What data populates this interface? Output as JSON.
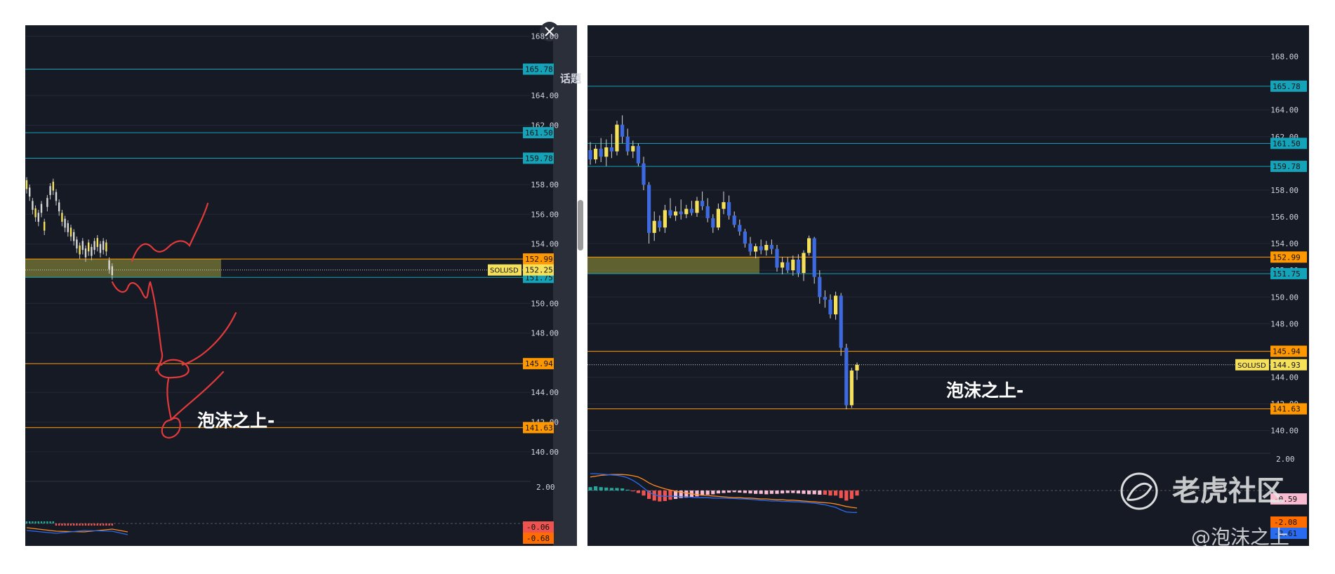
{
  "watermark": {
    "brand": "老虎社区",
    "handle": "@泡沫之上"
  },
  "colors": {
    "bg": "#161a25",
    "text": "#d1d4dc",
    "grid": "#242836",
    "up": "#f5e05c",
    "down": "#3d6ae0",
    "cyan": "#14a3b8",
    "orange": "#ff9800",
    "zone": "#7a7a34",
    "red_pen": "#e23a3a",
    "macd_fast": "#ff8a1f",
    "macd_slow": "#2a6cf0",
    "hist_up": "#26a69a",
    "hist_down": "#ef5350",
    "hist_down_light": "#f8bbd0"
  },
  "chart_data": [
    {
      "type": "candlestick",
      "panel": "left",
      "series_label": "SOLUSD",
      "ylim": [
        139.0,
        168.5
      ],
      "yticks": [
        {
          "v": 168.0,
          "t": "168.00"
        },
        {
          "v": 164.0,
          "t": "164.00"
        },
        {
          "v": 162.0,
          "t": "162.00"
        },
        {
          "v": 158.0,
          "t": "158.00"
        },
        {
          "v": 156.0,
          "t": "156.00"
        },
        {
          "v": 154.0,
          "t": "154.00"
        },
        {
          "v": 150.0,
          "t": "150.00"
        },
        {
          "v": 148.0,
          "t": "148.00"
        },
        {
          "v": 144.0,
          "t": "144.00"
        },
        {
          "v": 142.0,
          "t": "142.00"
        },
        {
          "v": 140.0,
          "t": "140.00"
        }
      ],
      "levels": [
        {
          "value": 165.78,
          "label": "165.78",
          "color": "cyan"
        },
        {
          "value": 161.5,
          "label": "161.50",
          "color": "cyan"
        },
        {
          "value": 159.78,
          "label": "159.78",
          "color": "cyan"
        },
        {
          "value": 152.99,
          "label": "152.99",
          "color": "orange"
        },
        {
          "value": 151.75,
          "label": "151.75",
          "color": "cyan"
        },
        {
          "value": 145.94,
          "label": "145.94",
          "color": "orange"
        },
        {
          "value": 141.63,
          "label": "141.63",
          "color": "orange"
        }
      ],
      "last_price": {
        "value": 152.25,
        "label": "152.25"
      },
      "zone": {
        "low": 151.75,
        "high": 152.99
      },
      "annotation": "泡沫之上-",
      "macd": {
        "tick": "2.00",
        "values": [
          "-0.06",
          "-0.68"
        ]
      }
    },
    {
      "type": "candlestick",
      "panel": "right",
      "series_label": "SOLUSD",
      "ylim": [
        139.3,
        169.5
      ],
      "yticks": [
        {
          "v": 168.0,
          "t": "168.00"
        },
        {
          "v": 164.0,
          "t": "164.00"
        },
        {
          "v": 162.0,
          "t": "162.00"
        },
        {
          "v": 158.0,
          "t": "158.00"
        },
        {
          "v": 156.0,
          "t": "156.00"
        },
        {
          "v": 154.0,
          "t": "154.00"
        },
        {
          "v": 152.0,
          "t": "152.00"
        },
        {
          "v": 150.0,
          "t": "150.00"
        },
        {
          "v": 148.0,
          "t": "148.00"
        },
        {
          "v": 144.0,
          "t": "144.00"
        },
        {
          "v": 142.0,
          "t": "142.00"
        },
        {
          "v": 140.0,
          "t": "140.00"
        }
      ],
      "levels": [
        {
          "value": 165.78,
          "label": "165.78",
          "color": "cyan"
        },
        {
          "value": 161.5,
          "label": "161.50",
          "color": "cyan"
        },
        {
          "value": 159.78,
          "label": "159.78",
          "color": "cyan"
        },
        {
          "value": 152.99,
          "label": "152.99",
          "color": "orange"
        },
        {
          "value": 151.75,
          "label": "151.75",
          "color": "cyan"
        },
        {
          "value": 145.94,
          "label": "145.94",
          "color": "orange"
        },
        {
          "value": 141.63,
          "label": "141.63",
          "color": "orange"
        }
      ],
      "last_price": {
        "value": 144.93,
        "label": "144.93"
      },
      "zone": {
        "low": 151.75,
        "high": 152.99
      },
      "annotation": "泡沫之上-",
      "macd": {
        "tick": "2.00",
        "values": [
          "-0.59",
          "-2.08",
          "-2.61"
        ]
      },
      "candles": [
        [
          161.0,
          161.6,
          159.9,
          160.3
        ],
        [
          160.3,
          161.4,
          160.0,
          161.1
        ],
        [
          161.1,
          161.9,
          160.1,
          160.5
        ],
        [
          160.5,
          161.8,
          159.8,
          161.2
        ],
        [
          161.2,
          162.2,
          160.4,
          160.9
        ],
        [
          160.9,
          163.2,
          160.6,
          162.9
        ],
        [
          162.9,
          163.6,
          161.5,
          162.0
        ],
        [
          162.0,
          162.6,
          160.6,
          160.9
        ],
        [
          160.9,
          161.7,
          160.4,
          161.3
        ],
        [
          161.3,
          161.5,
          159.8,
          160.0
        ],
        [
          160.0,
          160.5,
          158.0,
          158.4
        ],
        [
          158.4,
          158.6,
          154.0,
          154.8
        ],
        [
          154.8,
          156.4,
          154.2,
          155.7
        ],
        [
          155.7,
          156.1,
          154.9,
          155.2
        ],
        [
          155.2,
          156.9,
          154.8,
          156.5
        ],
        [
          156.5,
          157.4,
          155.9,
          156.1
        ],
        [
          156.1,
          156.8,
          155.7,
          156.4
        ],
        [
          156.4,
          157.3,
          155.8,
          156.2
        ],
        [
          156.2,
          156.9,
          155.9,
          156.6
        ],
        [
          156.6,
          157.2,
          156.1,
          156.3
        ],
        [
          156.3,
          157.5,
          156.0,
          157.2
        ],
        [
          157.2,
          157.9,
          156.5,
          156.8
        ],
        [
          156.8,
          157.4,
          155.6,
          155.9
        ],
        [
          155.9,
          156.2,
          154.8,
          155.2
        ],
        [
          155.2,
          157.0,
          155.0,
          156.6
        ],
        [
          156.6,
          157.9,
          156.2,
          157.1
        ],
        [
          157.1,
          157.6,
          155.8,
          156.1
        ],
        [
          156.1,
          156.4,
          155.2,
          155.4
        ],
        [
          155.4,
          155.8,
          154.6,
          154.9
        ],
        [
          154.9,
          155.1,
          153.7,
          154.0
        ],
        [
          154.0,
          154.5,
          153.1,
          153.4
        ],
        [
          153.4,
          154.0,
          152.9,
          153.8
        ],
        [
          153.8,
          154.3,
          153.2,
          153.5
        ],
        [
          153.5,
          154.2,
          153.1,
          153.9
        ],
        [
          153.9,
          154.3,
          153.2,
          153.6
        ],
        [
          153.6,
          153.9,
          151.9,
          152.2
        ],
        [
          152.2,
          153.0,
          151.7,
          152.6
        ],
        [
          152.6,
          153.0,
          151.8,
          152.0
        ],
        [
          152.0,
          153.1,
          151.6,
          152.8
        ],
        [
          152.8,
          153.2,
          151.5,
          151.8
        ],
        [
          151.8,
          153.5,
          151.2,
          153.3
        ],
        [
          153.3,
          154.6,
          153.1,
          154.4
        ],
        [
          154.4,
          154.5,
          151.0,
          151.5
        ],
        [
          151.5,
          152.0,
          149.5,
          150.0
        ],
        [
          150.0,
          150.5,
          149.2,
          149.8
        ],
        [
          149.8,
          150.2,
          148.4,
          148.7
        ],
        [
          148.7,
          150.4,
          148.3,
          150.1
        ],
        [
          150.1,
          150.3,
          145.6,
          146.2
        ],
        [
          146.2,
          146.5,
          141.6,
          141.9
        ],
        [
          141.9,
          144.7,
          141.7,
          144.5
        ],
        [
          144.5,
          145.1,
          143.8,
          144.93
        ]
      ],
      "macd_hist": [
        0.4,
        0.5,
        0.4,
        0.35,
        0.3,
        0.3,
        0.25,
        0.1,
        -0.1,
        -0.3,
        -0.6,
        -1.0,
        -1.2,
        -1.3,
        -1.25,
        -1.1,
        -1.0,
        -0.9,
        -0.85,
        -0.8,
        -0.7,
        -0.6,
        -0.5,
        -0.45,
        -0.35,
        -0.3,
        -0.25,
        -0.2,
        -0.25,
        -0.3,
        -0.35,
        -0.4,
        -0.4,
        -0.45,
        -0.4,
        -0.4,
        -0.35,
        -0.3,
        -0.3,
        -0.35,
        -0.4,
        -0.45,
        -0.45,
        -0.5,
        -0.5,
        -0.6,
        -0.6,
        -0.9,
        -1.2,
        -1.0,
        -0.6
      ],
      "macd_line": [
        2.0,
        2.0,
        1.95,
        1.9,
        1.85,
        1.8,
        1.7,
        1.5,
        1.2,
        0.8,
        0.3,
        -0.2,
        -0.5,
        -0.65,
        -0.7,
        -0.7,
        -0.7,
        -0.75,
        -0.75,
        -0.8,
        -0.85,
        -0.85,
        -0.85,
        -0.9,
        -0.9,
        -0.9,
        -0.95,
        -0.95,
        -1.0,
        -1.0,
        -1.05,
        -1.1,
        -1.15,
        -1.2,
        -1.25,
        -1.25,
        -1.3,
        -1.3,
        -1.35,
        -1.35,
        -1.4,
        -1.45,
        -1.5,
        -1.6,
        -1.7,
        -1.85,
        -2.0,
        -2.3,
        -2.55,
        -2.6,
        -2.61
      ],
      "signal_line": [
        1.6,
        1.7,
        1.8,
        1.85,
        1.9,
        1.9,
        1.9,
        1.85,
        1.75,
        1.6,
        1.3,
        0.9,
        0.6,
        0.4,
        0.2,
        0.05,
        -0.1,
        -0.2,
        -0.3,
        -0.4,
        -0.5,
        -0.55,
        -0.6,
        -0.65,
        -0.7,
        -0.75,
        -0.8,
        -0.85,
        -0.85,
        -0.9,
        -0.9,
        -0.95,
        -1.0,
        -1.0,
        -1.05,
        -1.1,
        -1.1,
        -1.15,
        -1.15,
        -1.2,
        -1.25,
        -1.3,
        -1.35,
        -1.4,
        -1.45,
        -1.5,
        -1.6,
        -1.75,
        -1.9,
        -2.0,
        -2.08
      ]
    }
  ]
}
